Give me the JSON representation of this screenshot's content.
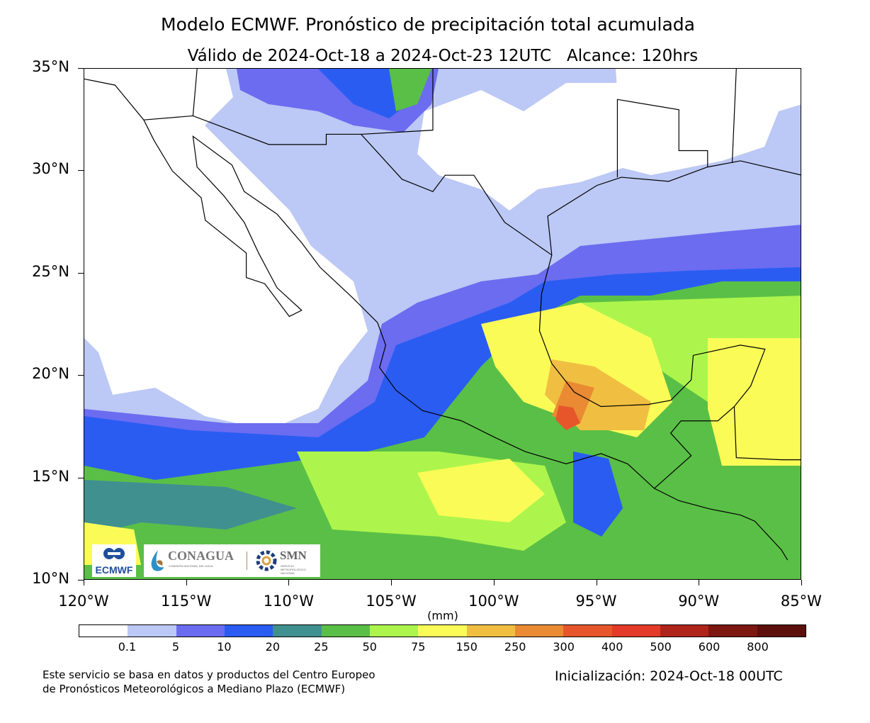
{
  "header": {
    "title": "Modelo ECMWF. Pronóstico de precipitación total acumulada",
    "subtitle": "Válido de 2024-Oct-18 a 2024-Oct-23 12UTC   Alcance: 120hrs"
  },
  "map": {
    "lat_labels": [
      "35°N",
      "30°N",
      "25°N",
      "20°N",
      "15°N",
      "10°N"
    ],
    "lon_labels": [
      "120°W",
      "115°W",
      "110°W",
      "105°W",
      "100°W",
      "95°W",
      "90°W",
      "85°W"
    ],
    "extent": {
      "lon": [
        -120,
        -85
      ],
      "lat": [
        10,
        35
      ]
    }
  },
  "colorbar": {
    "unit": "(mm)",
    "labels": [
      "0.1",
      "5",
      "10",
      "20",
      "25",
      "50",
      "75",
      "150",
      "250",
      "300",
      "400",
      "500",
      "600",
      "800"
    ],
    "colors": [
      "#ffffff",
      "#bcc8f5",
      "#6b6cf0",
      "#2a5cf2",
      "#409090",
      "#5abf46",
      "#adf54c",
      "#fbfb58",
      "#f0bf42",
      "#ea8a33",
      "#e6562a",
      "#e33b27",
      "#ae241b",
      "#7d1712",
      "#5c0f0b"
    ]
  },
  "logos": {
    "ecmwf": "ECMWF",
    "conagua": "CONAGUA",
    "conagua_sub": "COMISIÓN NACIONAL DEL AGUA",
    "smn": "SMN",
    "smn_sub": "SERVICIO METEOROLÓGICO NACIONAL"
  },
  "footer": {
    "credit_line1": "Este servicio se basa en datos y productos del Centro Europeo",
    "credit_line2": "de Pronósticos Meteorológicos a Mediano Plazo (ECMWF)",
    "initialization": "Inicialización: 2024-Oct-18 00UTC"
  }
}
